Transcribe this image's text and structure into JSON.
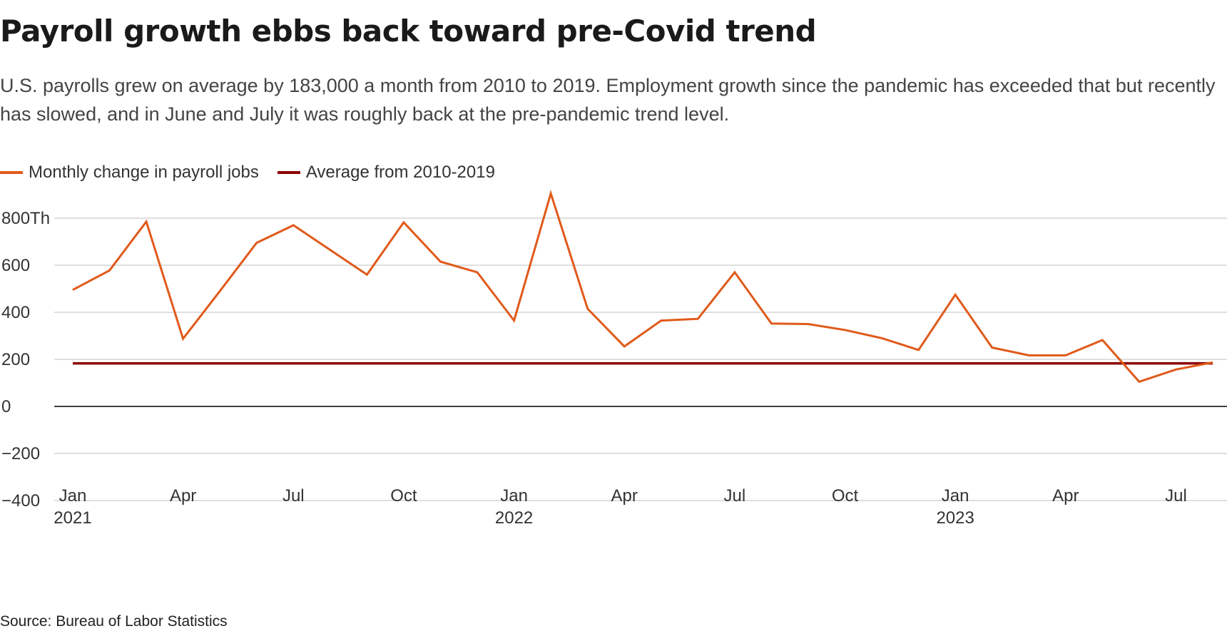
{
  "title": "Payroll growth ebbs back toward pre-Covid trend",
  "subtitle": "U.S. payrolls grew on average by 183,000 a month from 2010 to 2019. Employment growth since the pandemic has exceeded that but recently has slowed, and in June and July it was roughly back at the pre-pandemic trend level.",
  "source": "Source: Bureau of Labor Statistics",
  "colors": {
    "series": "#e05a1a",
    "average": "#8b0000",
    "grid": "#cccccc",
    "zero": "#000000"
  },
  "chart_data": {
    "type": "line",
    "title": "Payroll growth ebbs back toward pre-Covid trend",
    "xlabel": "",
    "ylabel": "",
    "ylim": [
      -500,
      900
    ],
    "y_ticks": [
      {
        "value": 800,
        "label": "800Th"
      },
      {
        "value": 600,
        "label": "600"
      },
      {
        "value": 400,
        "label": "400"
      },
      {
        "value": 200,
        "label": "200"
      },
      {
        "value": 0,
        "label": "0"
      },
      {
        "value": -200,
        "label": "−200"
      },
      {
        "value": -400,
        "label": "−400"
      }
    ],
    "x_ticks": [
      {
        "month": "2021-01",
        "label": "Jan",
        "year": "2021"
      },
      {
        "month": "2021-04",
        "label": "Apr"
      },
      {
        "month": "2021-07",
        "label": "Jul"
      },
      {
        "month": "2021-10",
        "label": "Oct"
      },
      {
        "month": "2022-01",
        "label": "Jan",
        "year": "2022"
      },
      {
        "month": "2022-04",
        "label": "Apr"
      },
      {
        "month": "2022-07",
        "label": "Jul"
      },
      {
        "month": "2022-10",
        "label": "Oct"
      },
      {
        "month": "2023-01",
        "label": "Jan",
        "year": "2023"
      },
      {
        "month": "2023-04",
        "label": "Apr"
      },
      {
        "month": "2023-07",
        "label": "Jul"
      }
    ],
    "grid": true,
    "legend_position": "top-left",
    "series": [
      {
        "name": "Monthly change in payroll jobs",
        "color": "#e05a1a",
        "x": [
          "2021-01",
          "2021-02",
          "2021-03",
          "2021-04",
          "2021-05",
          "2021-06",
          "2021-07",
          "2021-08",
          "2021-09",
          "2021-10",
          "2021-11",
          "2021-12",
          "2022-01",
          "2022-02",
          "2022-03",
          "2022-04",
          "2022-05",
          "2022-06",
          "2022-07",
          "2022-08",
          "2022-09",
          "2022-10",
          "2022-11",
          "2022-12",
          "2023-01",
          "2023-02",
          "2023-03",
          "2023-04",
          "2023-05",
          "2023-06",
          "2023-07",
          "2023-08"
        ],
        "values": [
          495,
          578,
          785,
          288,
          490,
          695,
          770,
          665,
          560,
          782,
          615,
          570,
          365,
          905,
          415,
          255,
          365,
          372,
          570,
          352,
          350,
          325,
          290,
          240,
          475,
          250,
          217,
          217,
          282,
          105,
          157,
          187
        ]
      },
      {
        "name": "Average from 2010-2019",
        "color": "#8b0000",
        "x": [
          "2021-01",
          "2023-08"
        ],
        "values": [
          183,
          183
        ]
      }
    ]
  }
}
